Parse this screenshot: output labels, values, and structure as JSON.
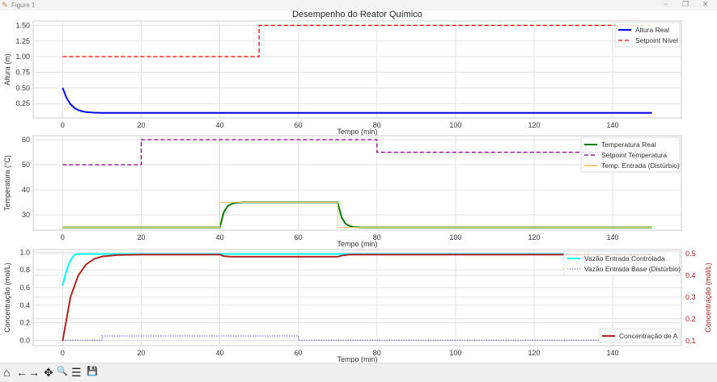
{
  "window": {
    "title": "Figure 1",
    "controls": [
      "−",
      "❐",
      "✕"
    ]
  },
  "toolbar": {
    "icons": [
      "home-icon",
      "back-icon",
      "forward-icon",
      "pan-icon",
      "zoom-icon",
      "configure-icon",
      "save-icon"
    ],
    "glyphs": [
      "⌂",
      "←",
      "→",
      "✥",
      "🔍",
      "☰",
      "💾"
    ]
  },
  "chart_data": [
    {
      "type": "line",
      "title": "Desempenho do Reator Químico",
      "xlabel": "Tempo (min)",
      "ylabel": "Altura (m)",
      "xlim": [
        -7.5,
        157.5
      ],
      "ylim": [
        0.02,
        1.57
      ],
      "xticks": [
        0,
        20,
        40,
        60,
        80,
        100,
        120,
        140
      ],
      "yticks": [
        0.25,
        0.5,
        0.75,
        1.0,
        1.25,
        1.5
      ],
      "ytick_labels": [
        "0.25",
        "0.50",
        "0.75",
        "1.00",
        "1.25",
        "1.50"
      ],
      "grid": true,
      "legend": "top-right",
      "series": [
        {
          "name": "Altura Real",
          "color": "#0000ff",
          "style": "solid",
          "x": [
            0,
            1,
            2,
            3,
            4,
            5,
            6,
            8,
            10,
            15,
            150
          ],
          "y": [
            0.5,
            0.34,
            0.24,
            0.18,
            0.145,
            0.125,
            0.113,
            0.104,
            0.1,
            0.1,
            0.1
          ]
        },
        {
          "name": "Setpoint Nível",
          "color": "#ff0000",
          "style": "dashed",
          "x": [
            0,
            50,
            50,
            150
          ],
          "y": [
            1.0,
            1.0,
            1.5,
            1.5
          ]
        }
      ]
    },
    {
      "type": "line",
      "xlabel": "Tempo (min)",
      "ylabel": "Temperatura (°C)",
      "xlim": [
        -7.5,
        157.5
      ],
      "ylim": [
        23.9,
        61.6
      ],
      "xticks": [
        0,
        20,
        40,
        60,
        80,
        100,
        120,
        140
      ],
      "yticks": [
        30,
        40,
        50,
        60
      ],
      "ytick_labels": [
        "30",
        "40",
        "50",
        "60"
      ],
      "grid": true,
      "legend": "top-right",
      "series": [
        {
          "name": "Temperatura Real",
          "color": "#008000",
          "style": "solid",
          "x": [
            0,
            40,
            41,
            42,
            43,
            44,
            46,
            70,
            71,
            72,
            73,
            74,
            76,
            150
          ],
          "y": [
            25,
            25,
            31,
            33.5,
            34.4,
            34.8,
            35,
            35,
            29,
            26.5,
            25.6,
            25.2,
            25,
            25
          ]
        },
        {
          "name": "Setpoint Temperatura",
          "color": "#800080",
          "style": "dashed",
          "x": [
            0,
            20,
            20,
            80,
            80,
            150
          ],
          "y": [
            50,
            50,
            60,
            60,
            55,
            55
          ]
        },
        {
          "name": "Temp. Entrada (Distúrbio)",
          "color": "#ffc870",
          "style": "solid",
          "x": [
            0,
            40,
            40,
            70,
            70,
            150
          ],
          "y": [
            25,
            25,
            35,
            35,
            25,
            25
          ]
        }
      ]
    },
    {
      "type": "line",
      "xlabel": "Tempo (min)",
      "ylabel": "Concentração (mol/L)",
      "ylabel_right": "Concentração (mol/L)",
      "xlim": [
        -7.5,
        157.5
      ],
      "ylim": [
        -0.06,
        1.03
      ],
      "ylim_right": [
        0.077,
        0.518
      ],
      "xticks": [
        0,
        20,
        40,
        60,
        80,
        100,
        120,
        140
      ],
      "yticks": [
        0,
        0.2,
        0.4,
        0.6,
        0.8,
        1.0
      ],
      "ytick_labels": [
        "0.0",
        "0.2",
        "0.4",
        "0.6",
        "0.8",
        "1.0"
      ],
      "yticks_right": [
        0.1,
        0.2,
        0.3,
        0.4,
        0.5
      ],
      "ytick_labels_right": [
        "0.1",
        "0.2",
        "0.3",
        "0.4",
        "0.5"
      ],
      "grid": true,
      "legend": "top-right",
      "legend_right": "bottom-right",
      "series": [
        {
          "name": "Vazão Entrada Controlada",
          "color": "#00ffff",
          "style": "solid",
          "axis": "left",
          "x": [
            0,
            1,
            2,
            3,
            3.5,
            150
          ],
          "y": [
            0.62,
            0.8,
            0.91,
            0.97,
            0.98,
            0.98
          ]
        },
        {
          "name": "Vazão Entrada Base (Distúrbio)",
          "color": "#8080d0",
          "style": "dotted",
          "axis": "left",
          "x": [
            0,
            10,
            10,
            60,
            60,
            150
          ],
          "y": [
            0,
            0,
            0.05,
            0.05,
            0,
            0
          ]
        },
        {
          "name": "Concentração de A",
          "color": "#b22222",
          "style": "solid",
          "axis": "right",
          "x": [
            0,
            2,
            4,
            6,
            8,
            10,
            14,
            20,
            40,
            41,
            43,
            70,
            71,
            73,
            150
          ],
          "y": [
            0.1,
            0.3,
            0.4,
            0.45,
            0.475,
            0.486,
            0.493,
            0.495,
            0.495,
            0.488,
            0.485,
            0.485,
            0.49,
            0.495,
            0.495
          ]
        }
      ]
    }
  ]
}
